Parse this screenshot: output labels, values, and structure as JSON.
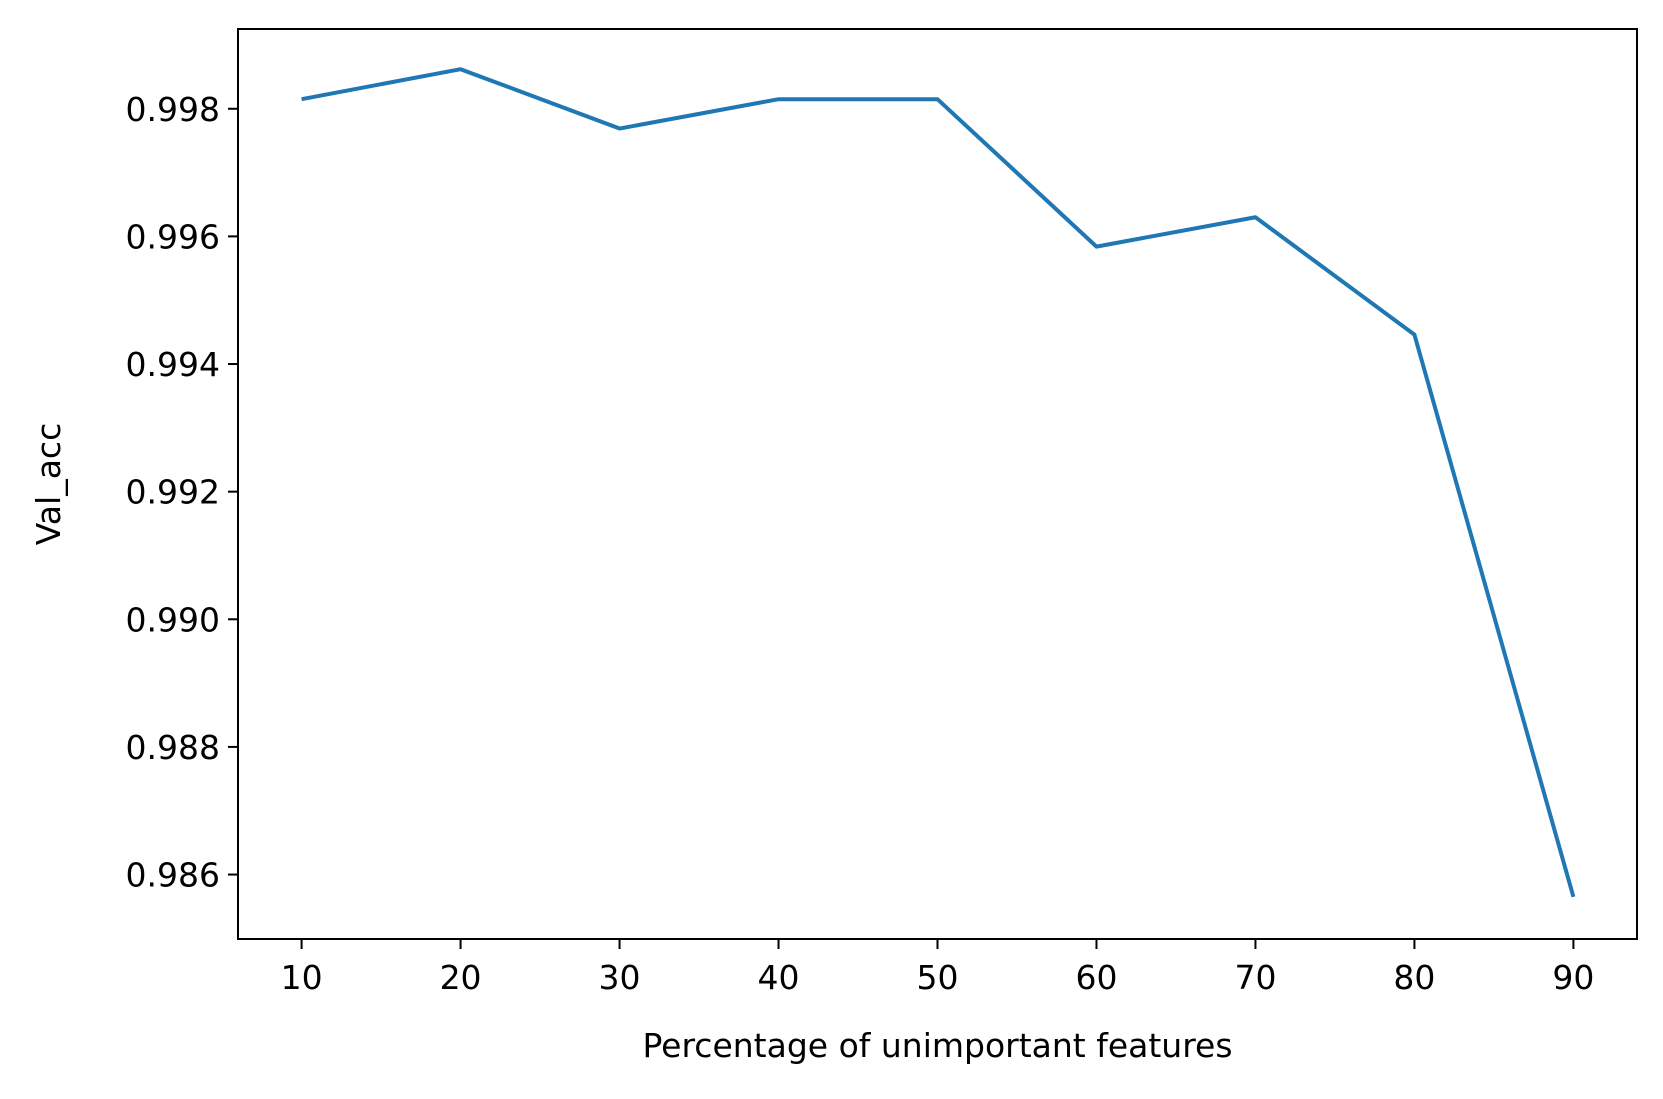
{
  "chart_data": {
    "type": "line",
    "title": "",
    "xlabel": "Percentage of unimportant features",
    "ylabel": "Val_acc",
    "x": [
      10,
      20,
      30,
      40,
      50,
      60,
      70,
      80,
      90
    ],
    "series": [
      {
        "values": [
          0.99815,
          0.99862,
          0.99769,
          0.99815,
          0.99815,
          0.99584,
          0.9963,
          0.99446,
          0.98565
        ],
        "color": "#1f77b4"
      }
    ],
    "xlim": [
      6,
      94
    ],
    "ylim": [
      0.98499,
      0.99925
    ],
    "xticks": [
      10,
      20,
      30,
      40,
      50,
      60,
      70,
      80,
      90
    ],
    "xtick_labels": [
      "10",
      "20",
      "30",
      "40",
      "50",
      "60",
      "70",
      "80",
      "90"
    ],
    "yticks": [
      0.986,
      0.988,
      0.99,
      0.992,
      0.994,
      0.996,
      0.998
    ],
    "ytick_labels": [
      "0.986",
      "0.988",
      "0.990",
      "0.992",
      "0.994",
      "0.996",
      "0.998"
    ],
    "grid": false,
    "legend": false
  }
}
